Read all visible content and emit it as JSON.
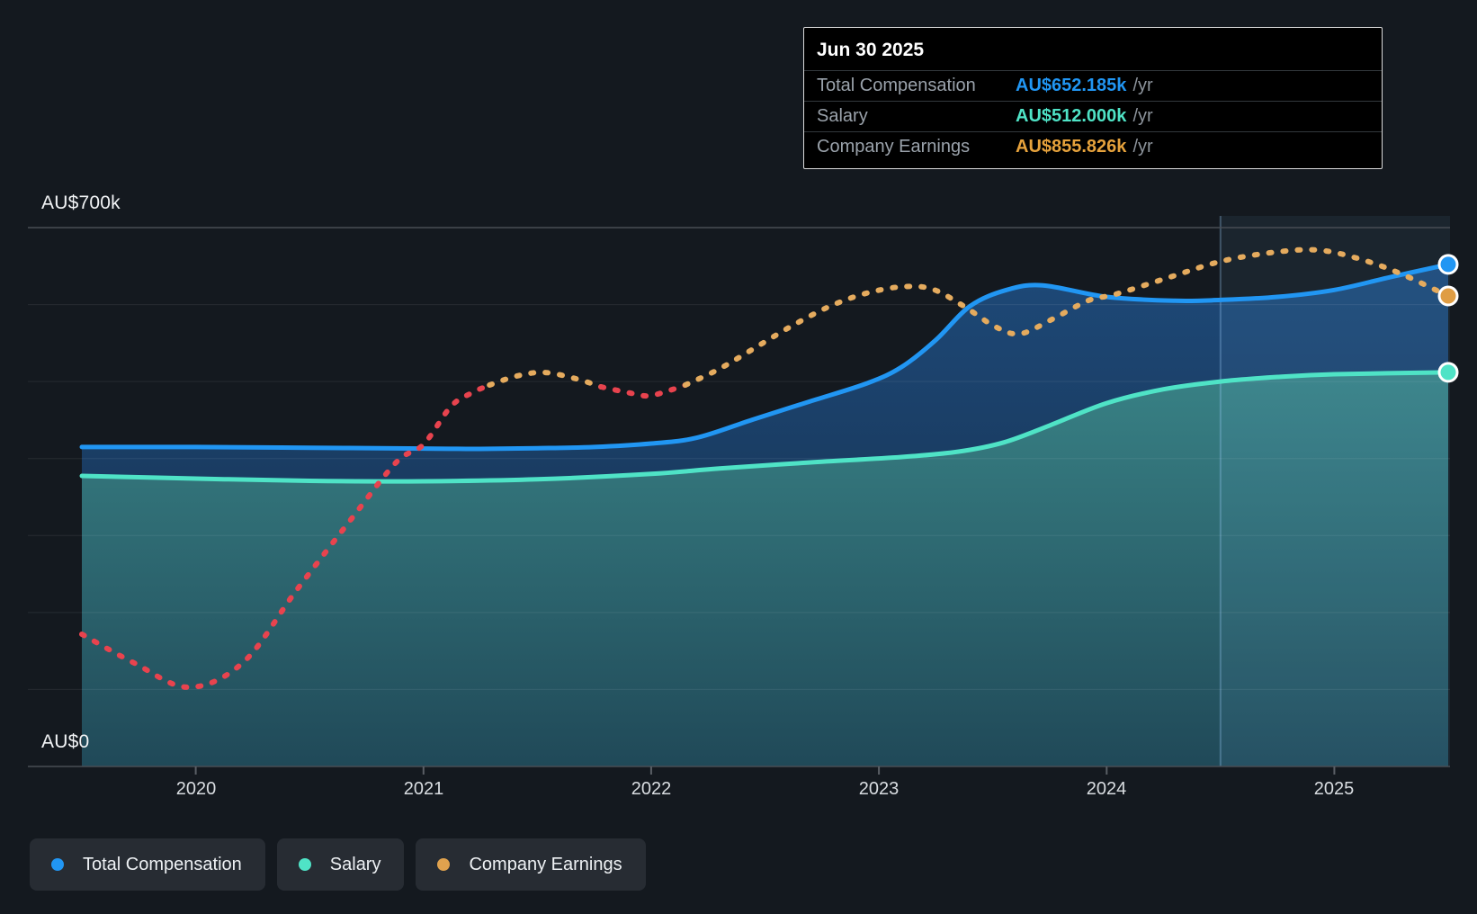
{
  "tooltip": {
    "date": "Jun 30 2025",
    "rows": [
      {
        "label": "Total Compensation",
        "value": "AU$652.185k",
        "suffix": "/yr"
      },
      {
        "label": "Salary",
        "value": "AU$512.000k",
        "suffix": "/yr"
      },
      {
        "label": "Company Earnings",
        "value": "AU$855.826k",
        "suffix": "/yr"
      }
    ]
  },
  "legend": [
    {
      "label": "Total Compensation",
      "color": "#2196f3"
    },
    {
      "label": "Salary",
      "color": "#4fe3c6"
    },
    {
      "label": "Company Earnings",
      "color": "#e0a24e"
    }
  ],
  "colors": {
    "total_compensation": "#2196f3",
    "salary": "#4fe3c6",
    "company_earnings": "#e5ab5e",
    "company_earnings_marker": "#df9d44",
    "earnings_negative_red": "#e8434e",
    "background": "#14191f",
    "tooltip_bg": "#000000",
    "legend_pill_bg": "#272c33",
    "highlight_band": "rgba(130,195,255,0.07)"
  },
  "chart_data": {
    "type": "line",
    "title": "Executive compensation over time",
    "unit": "AU$k per year",
    "x_domain": [
      2019.5,
      2025.5
    ],
    "ylim_k": [
      0,
      700
    ],
    "grid": "faint horizontal gridlines every 100k; labeled lines at AU$700k and AU$0",
    "gridlines_k": [
      600,
      500,
      400,
      300,
      200,
      100
    ],
    "y_ticks": {
      "top_label": "AU$700k",
      "top_value_k": 700,
      "bottom_label": "AU$0",
      "bottom_value_k": 0
    },
    "x_ticks": {
      "values": [
        2020,
        2021,
        2022,
        2023,
        2024,
        2025
      ],
      "labels": [
        "2020",
        "2021",
        "2022",
        "2023",
        "2024",
        "2025"
      ]
    },
    "highlight_band": {
      "from_year": 2024.5,
      "to_year": 2025.5
    },
    "legend_position": "bottom-left",
    "series": [
      {
        "name": "Total Compensation",
        "color": "#2196f3",
        "style": "solid",
        "area": "fills down to Salary line",
        "x": [
          2019.5,
          2020.0,
          2020.5,
          2021.0,
          2021.25,
          2021.5,
          2021.75,
          2022.0,
          2022.2,
          2022.45,
          2022.7,
          2022.95,
          2023.1,
          2023.25,
          2023.4,
          2023.56,
          2023.72,
          2024.0,
          2024.3,
          2024.5,
          2024.75,
          2025.0,
          2025.25,
          2025.5
        ],
        "y_k": [
          415,
          415,
          414,
          413,
          412.5,
          413.5,
          415,
          419.5,
          427,
          451,
          474.5,
          498,
          519,
          554,
          598,
          619,
          625,
          610,
          605,
          606,
          610,
          619,
          636,
          652.185
        ]
      },
      {
        "name": "Salary",
        "color": "#4fe3c6",
        "style": "solid",
        "area": "fills down to zero",
        "x": [
          2019.5,
          2020.0,
          2020.5,
          2021.0,
          2021.5,
          2022.0,
          2022.3,
          2022.7,
          2023.1,
          2023.35,
          2023.55,
          2023.75,
          2024.0,
          2024.25,
          2024.5,
          2024.75,
          2025.0,
          2025.5
        ],
        "y_k": [
          377.5,
          374,
          371,
          370.5,
          373,
          380,
          387,
          395,
          402,
          409,
          421,
          443,
          472,
          490,
          500,
          506,
          509.5,
          512
        ]
      },
      {
        "name": "Company Earnings",
        "style": "dotted",
        "note": "plotted on a separate hidden scale; values below are axis-equivalent display positions in AU$k; red segments indicate periods of negative earnings",
        "end_value_actual_k": 855.826,
        "segments": [
          {
            "color": "#e8434e",
            "x": [
              2019.5,
              2019.73,
              2019.97,
              2020.21,
              2020.44,
              2020.68,
              2020.88,
              2021.0,
              2021.12,
              2021.21,
              2021.29
            ],
            "y_k": [
              171.8,
              134.4,
              102.8,
              135.6,
              227.9,
              320.2,
              395,
              418.4,
              467.5,
              485,
              495.5
            ]
          },
          {
            "color": "#e5ab5e",
            "x": [
              2021.29,
              2021.41,
              2021.53,
              2021.67,
              2021.78
            ],
            "y_k": [
              495.5,
              507.2,
              511.9,
              503.7,
              493.2
            ]
          },
          {
            "color": "#e8434e",
            "x": [
              2021.78,
              2021.91,
              2021.99,
              2022.08,
              2022.15
            ],
            "y_k": [
              493.2,
              485,
              481.5,
              488.5,
              495.5
            ]
          },
          {
            "color": "#e5ab5e",
            "x": [
              2022.15,
              2022.3,
              2022.46,
              2022.62,
              2022.78,
              2022.93,
              2023.09,
              2023.23,
              2023.37,
              2023.51,
              2023.62,
              2023.76,
              2023.92,
              2024.04,
              2024.28,
              2024.51,
              2024.75,
              2024.93,
              2025.1,
              2025.28,
              2025.5
            ],
            "y_k": [
              495.5,
              516.5,
              544.6,
              572.6,
              597.2,
              613.5,
              622.9,
              620.5,
              598.4,
              571.5,
              562.1,
              580.8,
              605.3,
              613.5,
              635.8,
              656.8,
              668.5,
              670.8,
              660.3,
              641.6,
              611.2
            ]
          }
        ]
      }
    ],
    "markers": [
      {
        "series": "Total Compensation",
        "t": 2025.5,
        "v_display_k": 652.185,
        "color": "#2196f3"
      },
      {
        "series": "Company Earnings",
        "t": 2025.5,
        "v_display_k": 611.2,
        "color": "#df9d44"
      },
      {
        "series": "Salary",
        "t": 2025.5,
        "v_display_k": 512.0,
        "color": "#4fe3c6"
      }
    ]
  }
}
